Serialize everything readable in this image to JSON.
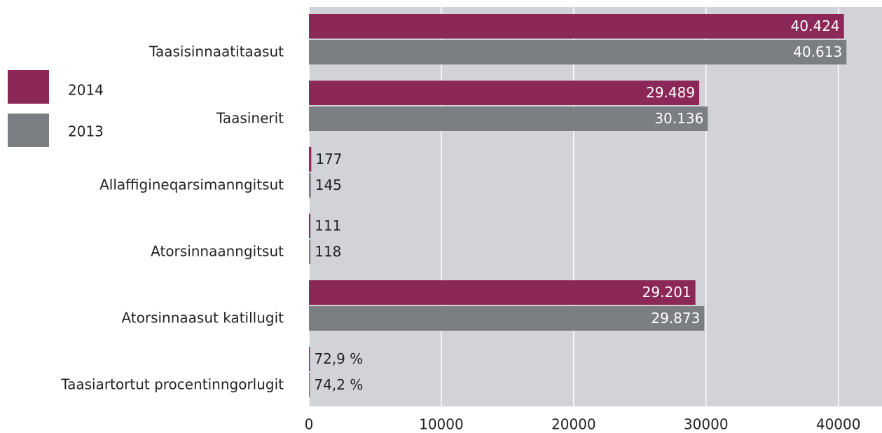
{
  "chart_data": {
    "type": "bar",
    "orientation": "horizontal",
    "categories": [
      "Taasisinnaatitaasut",
      "Taasinerit",
      "Allaffigineqarsimanngitsut",
      "Atorsinnaanngitsut",
      "Atorsinnaasut katillugit",
      "Taasiartortut procentinngorlugit"
    ],
    "series": [
      {
        "name": "2014",
        "color": "#8b2857",
        "values": [
          40424,
          29489,
          177,
          111,
          29201,
          72.9
        ],
        "value_labels": [
          "40.424",
          "29.489",
          "177",
          "111",
          "29.201",
          "72,9 %"
        ]
      },
      {
        "name": "2013",
        "color": "#7b7e83",
        "values": [
          40613,
          30136,
          145,
          118,
          29873,
          74.2
        ],
        "value_labels": [
          "40.613",
          "30.136",
          "145",
          "118",
          "29.873",
          "74,2 %"
        ]
      }
    ],
    "xlim": [
      0,
      43300
    ],
    "xticks": [
      0,
      10000,
      20000,
      30000,
      40000
    ],
    "grid": true,
    "legend": "left"
  }
}
